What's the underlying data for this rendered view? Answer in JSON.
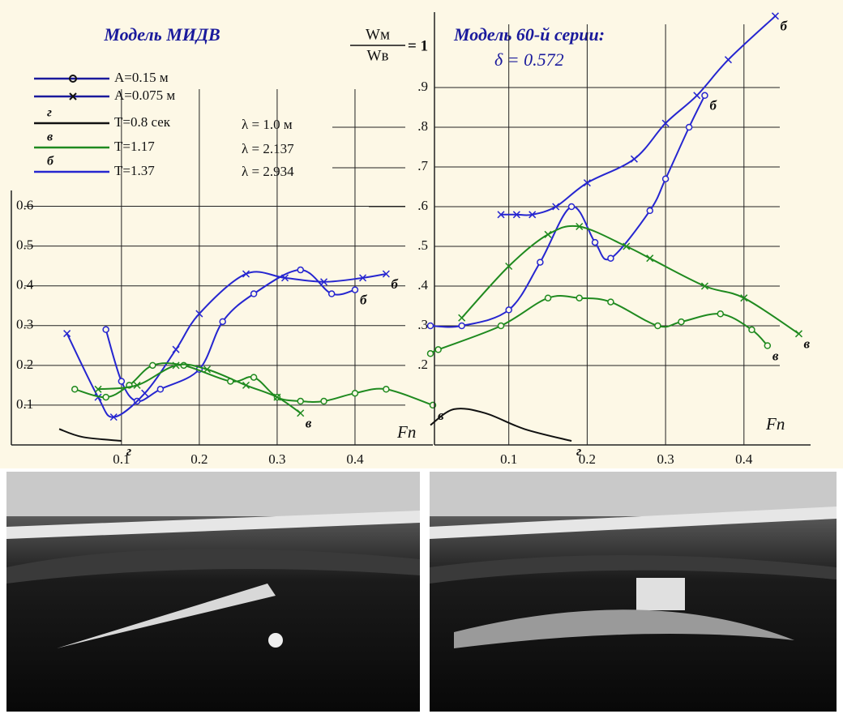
{
  "figure": {
    "legend": [
      {
        "label": "A=0.15 м",
        "marker": "circle",
        "color": "#1a1a9c"
      },
      {
        "label": "A=0.075 м",
        "marker": "cross",
        "color": "#1a1a9c"
      },
      {
        "label": "T=0.8 сек",
        "tag": "г",
        "color": "#111111"
      },
      {
        "label": "T=1.17",
        "tag": "в",
        "color": "#1f8a1f"
      },
      {
        "label": "T=1.37",
        "tag": "б",
        "color": "#2626d0"
      }
    ],
    "wavelengths": [
      "λ = 1.0  м",
      "λ = 2.137",
      "λ = 2.934"
    ],
    "ratio": {
      "numerator": "Wм",
      "denominator": "Wв",
      "equals": "= 1"
    },
    "delta": "δ = 0.572"
  },
  "chart_data": [
    {
      "type": "line",
      "title": "Модель МИДВ",
      "xlabel": "Fn",
      "grid": true,
      "xlim": [
        -0.03,
        0.5
      ],
      "ylim": [
        0,
        0.65
      ],
      "xticks": [
        0.1,
        0.2,
        0.3,
        0.4
      ],
      "yticks": [
        0.1,
        0.2,
        0.3,
        0.4,
        0.5,
        0.6
      ],
      "series": [
        {
          "tag": "б",
          "color": "#2626d0",
          "marker": "circle",
          "x": [
            0.08,
            0.1,
            0.12,
            0.15,
            0.2,
            0.23,
            0.27,
            0.33,
            0.37,
            0.4
          ],
          "values": [
            0.29,
            0.16,
            0.11,
            0.14,
            0.19,
            0.31,
            0.38,
            0.44,
            0.38,
            0.39
          ]
        },
        {
          "tag": "б",
          "color": "#2626d0",
          "marker": "cross",
          "x": [
            0.03,
            0.07,
            0.09,
            0.13,
            0.17,
            0.2,
            0.26,
            0.31,
            0.36,
            0.41,
            0.44
          ],
          "values": [
            0.28,
            0.12,
            0.07,
            0.13,
            0.24,
            0.33,
            0.43,
            0.42,
            0.41,
            0.42,
            0.43
          ]
        },
        {
          "tag": "в",
          "color": "#1f8a1f",
          "marker": "circle",
          "x": [
            0.04,
            0.08,
            0.11,
            0.14,
            0.18,
            0.24,
            0.27,
            0.3,
            0.33,
            0.36,
            0.4,
            0.44,
            0.5
          ],
          "values": [
            0.14,
            0.12,
            0.15,
            0.2,
            0.2,
            0.16,
            0.17,
            0.12,
            0.11,
            0.11,
            0.13,
            0.14,
            0.1
          ]
        },
        {
          "tag": "в",
          "color": "#1f8a1f",
          "marker": "cross",
          "x": [
            0.07,
            0.12,
            0.17,
            0.21,
            0.26,
            0.3,
            0.33
          ],
          "values": [
            0.14,
            0.15,
            0.2,
            0.19,
            0.15,
            0.12,
            0.08
          ]
        },
        {
          "tag": "г",
          "color": "#111111",
          "marker": "none",
          "x": [
            0.02,
            0.05,
            0.1
          ],
          "values": [
            0.04,
            0.02,
            0.01
          ]
        }
      ]
    },
    {
      "type": "line",
      "title": "Модель 60-й серии:",
      "xlabel": "Fn",
      "grid": true,
      "xlim": [
        0,
        0.485
      ],
      "ylim": [
        0,
        1.1
      ],
      "xticks": [
        0.1,
        0.2,
        0.3,
        0.4
      ],
      "yticks": [
        {
          "value": 0.2,
          "label": ".2"
        },
        {
          "value": 0.3,
          "label": ".3"
        },
        {
          "value": 0.4,
          "label": ".4"
        },
        {
          "value": 0.5,
          "label": ".5"
        },
        {
          "value": 0.6,
          "label": ".6"
        },
        {
          "value": 0.7,
          "label": ".7"
        },
        {
          "value": 0.8,
          "label": ".8"
        },
        {
          "value": 0.9,
          "label": ".9"
        }
      ],
      "series": [
        {
          "tag": "б",
          "color": "#2626d0",
          "marker": "cross",
          "x": [
            0.09,
            0.11,
            0.13,
            0.16,
            0.2,
            0.26,
            0.3,
            0.34,
            0.38,
            0.44
          ],
          "values": [
            0.58,
            0.58,
            0.58,
            0.6,
            0.66,
            0.72,
            0.81,
            0.88,
            0.97,
            1.08
          ]
        },
        {
          "tag": "б",
          "color": "#2626d0",
          "marker": "circle",
          "x": [
            0.0,
            0.04,
            0.1,
            0.14,
            0.18,
            0.21,
            0.23,
            0.28,
            0.3,
            0.33,
            0.35
          ],
          "values": [
            0.3,
            0.3,
            0.34,
            0.46,
            0.6,
            0.51,
            0.47,
            0.59,
            0.67,
            0.8,
            0.88
          ]
        },
        {
          "tag": "в",
          "color": "#1f8a1f",
          "marker": "cross",
          "x": [
            0.04,
            0.1,
            0.15,
            0.19,
            0.25,
            0.28,
            0.35,
            0.4,
            0.47
          ],
          "values": [
            0.32,
            0.45,
            0.53,
            0.55,
            0.5,
            0.47,
            0.4,
            0.37,
            0.28
          ]
        },
        {
          "tag": "в",
          "color": "#1f8a1f",
          "marker": "circle",
          "x": [
            0.0,
            0.01,
            0.09,
            0.15,
            0.19,
            0.23,
            0.29,
            0.32,
            0.37,
            0.41,
            0.43
          ],
          "values": [
            0.23,
            0.24,
            0.3,
            0.37,
            0.37,
            0.36,
            0.3,
            0.31,
            0.33,
            0.29,
            0.25
          ]
        },
        {
          "tag": "г",
          "color": "#111111",
          "marker": "none",
          "x": [
            0.0,
            0.03,
            0.07,
            0.12,
            0.18
          ],
          "values": [
            0.05,
            0.09,
            0.08,
            0.04,
            0.01
          ]
        }
      ]
    }
  ]
}
